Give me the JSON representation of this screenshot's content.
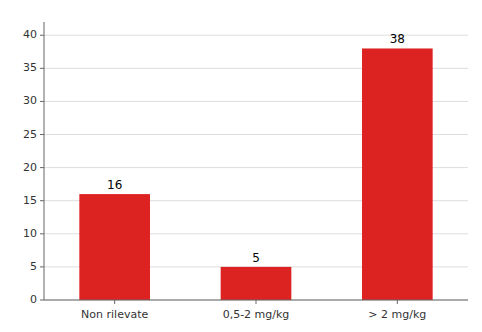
{
  "chart_data": {
    "type": "bar",
    "categories": [
      "Non rilevate",
      "0,5-2 mg/kg",
      "> 2 mg/kg"
    ],
    "values": [
      16,
      5,
      38
    ],
    "color": "#dd2222",
    "ylim": [
      0,
      42
    ],
    "yticks": [
      0,
      5,
      10,
      15,
      20,
      25,
      30,
      35,
      40
    ],
    "grid": true,
    "data_labels": true
  }
}
